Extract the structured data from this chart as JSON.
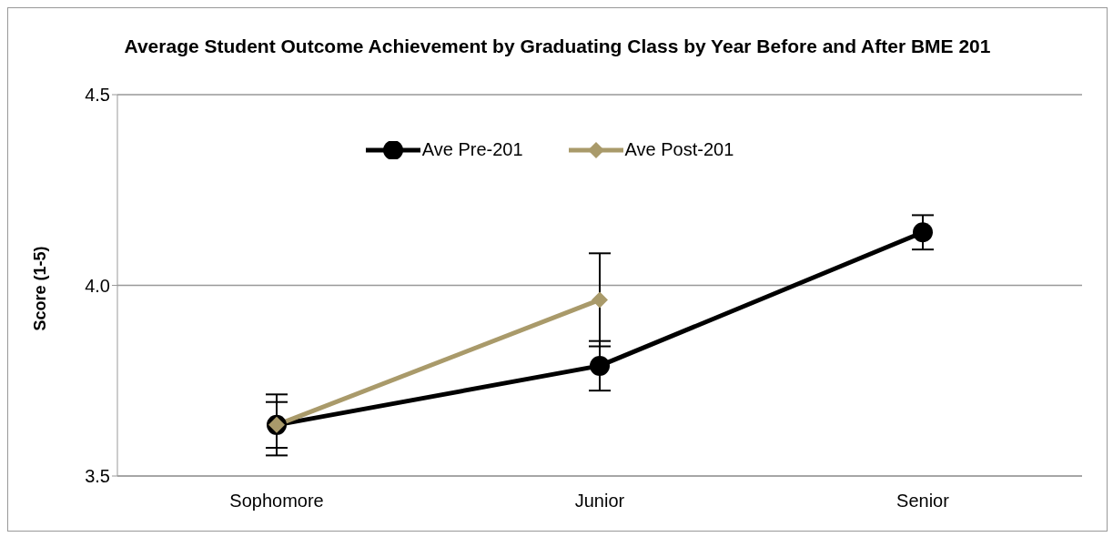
{
  "chart_data": {
    "type": "line",
    "title": "Average Student Outcome Achievement by Graduating Class by Year Before and After BME 201",
    "ylabel": "Score (1-5)",
    "categories": [
      "Sophomore",
      "Junior",
      "Senior"
    ],
    "series": [
      {
        "name": "Ave Pre-201",
        "color": "#000000",
        "marker": "circle",
        "values": [
          3.634,
          3.789,
          4.139
        ],
        "errors": [
          0.06,
          0.065,
          0.045
        ]
      },
      {
        "name": "Ave Post-201",
        "color": "#a99a6a",
        "marker": "diamond",
        "values": [
          3.634,
          3.962,
          null
        ],
        "errors": [
          0.08,
          0.122,
          null
        ]
      }
    ],
    "ylim": [
      3.5,
      4.5
    ],
    "yticks": [
      {
        "value": 3.5,
        "label": "3.5"
      },
      {
        "value": 4,
        "label": "4.0"
      },
      {
        "value": 4.5,
        "label": "4.5"
      }
    ],
    "grid": "y",
    "legend": "top"
  }
}
